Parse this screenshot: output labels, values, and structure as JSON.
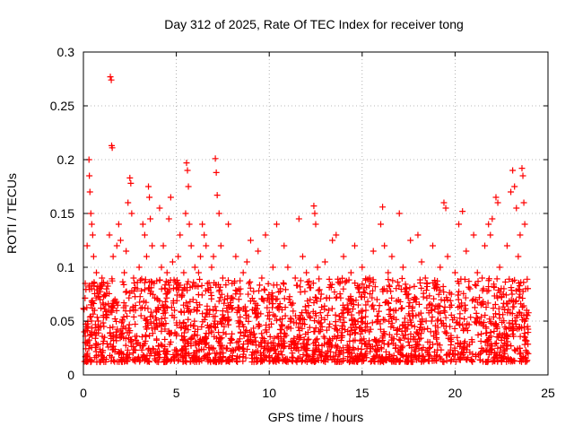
{
  "chart_data": {
    "type": "scatter",
    "title": "Day 312 of 2025, Rate Of TEC Index for receiver tong",
    "xlabel": "GPS time / hours",
    "ylabel": "ROTI / TECUs",
    "xlim": [
      0,
      25
    ],
    "ylim": [
      0,
      0.3
    ],
    "x_ticks": [
      0,
      5,
      10,
      15,
      20,
      25
    ],
    "y_ticks": [
      0,
      0.05,
      0.1,
      0.15,
      0.2,
      0.25,
      0.3
    ],
    "x_tick_labels": [
      "0",
      "5",
      "10",
      "15",
      "20",
      "25"
    ],
    "y_tick_labels": [
      "0",
      "0.05",
      "0.1",
      "0.15",
      "0.2",
      "0.25",
      "0.3"
    ],
    "grid": true,
    "marker": "+",
    "series_color": "#ff0000",
    "series": [
      {
        "name": "ROTI",
        "points": [
          [
            0.05,
            0.04
          ],
          [
            0.1,
            0.085
          ],
          [
            0.15,
            0.03
          ],
          [
            0.2,
            0.12
          ],
          [
            0.25,
            0.045
          ],
          [
            0.3,
            0.2
          ],
          [
            0.32,
            0.185
          ],
          [
            0.35,
            0.17
          ],
          [
            0.4,
            0.15
          ],
          [
            0.45,
            0.14
          ],
          [
            0.5,
            0.13
          ],
          [
            0.55,
            0.11
          ],
          [
            0.6,
            0.06
          ],
          [
            0.7,
            0.095
          ],
          [
            0.8,
            0.05
          ],
          [
            0.9,
            0.07
          ],
          [
            1.0,
            0.09
          ],
          [
            1.1,
            0.045
          ],
          [
            1.2,
            0.065
          ],
          [
            1.3,
            0.085
          ],
          [
            1.4,
            0.13
          ],
          [
            1.45,
            0.277
          ],
          [
            1.5,
            0.274
          ],
          [
            1.52,
            0.213
          ],
          [
            1.55,
            0.211
          ],
          [
            1.6,
            0.11
          ],
          [
            1.7,
            0.07
          ],
          [
            1.8,
            0.12
          ],
          [
            1.9,
            0.14
          ],
          [
            2.0,
            0.125
          ],
          [
            2.1,
            0.05
          ],
          [
            2.2,
            0.095
          ],
          [
            2.3,
            0.115
          ],
          [
            2.4,
            0.16
          ],
          [
            2.5,
            0.183
          ],
          [
            2.55,
            0.178
          ],
          [
            2.6,
            0.15
          ],
          [
            2.7,
            0.09
          ],
          [
            2.8,
            0.06
          ],
          [
            2.9,
            0.08
          ],
          [
            3.0,
            0.1
          ],
          [
            3.1,
            0.055
          ],
          [
            3.2,
            0.14
          ],
          [
            3.3,
            0.13
          ],
          [
            3.4,
            0.11
          ],
          [
            3.5,
            0.175
          ],
          [
            3.55,
            0.165
          ],
          [
            3.6,
            0.145
          ],
          [
            3.7,
            0.12
          ],
          [
            3.8,
            0.085
          ],
          [
            3.9,
            0.06
          ],
          [
            4.0,
            0.07
          ],
          [
            4.1,
            0.155
          ],
          [
            4.2,
            0.1
          ],
          [
            4.3,
            0.12
          ],
          [
            4.4,
            0.08
          ],
          [
            4.5,
            0.095
          ],
          [
            4.6,
            0.145
          ],
          [
            4.7,
            0.165
          ],
          [
            4.8,
            0.105
          ],
          [
            4.9,
            0.06
          ],
          [
            5.0,
            0.08
          ],
          [
            5.1,
            0.11
          ],
          [
            5.2,
            0.13
          ],
          [
            5.3,
            0.075
          ],
          [
            5.4,
            0.095
          ],
          [
            5.5,
            0.15
          ],
          [
            5.55,
            0.197
          ],
          [
            5.6,
            0.19
          ],
          [
            5.65,
            0.175
          ],
          [
            5.7,
            0.14
          ],
          [
            5.8,
            0.12
          ],
          [
            5.9,
            0.07
          ],
          [
            6.0,
            0.1
          ],
          [
            6.1,
            0.06
          ],
          [
            6.2,
            0.095
          ],
          [
            6.3,
            0.11
          ],
          [
            6.4,
            0.14
          ],
          [
            6.5,
            0.13
          ],
          [
            6.6,
            0.12
          ],
          [
            6.7,
            0.08
          ],
          [
            6.8,
            0.06
          ],
          [
            6.9,
            0.1
          ],
          [
            7.0,
            0.11
          ],
          [
            7.1,
            0.201
          ],
          [
            7.15,
            0.188
          ],
          [
            7.2,
            0.167
          ],
          [
            7.3,
            0.15
          ],
          [
            7.4,
            0.12
          ],
          [
            7.5,
            0.09
          ],
          [
            7.6,
            0.07
          ],
          [
            7.8,
            0.14
          ],
          [
            8.0,
            0.085
          ],
          [
            8.2,
            0.11
          ],
          [
            8.4,
            0.06
          ],
          [
            8.6,
            0.095
          ],
          [
            8.8,
            0.105
          ],
          [
            9.0,
            0.125
          ],
          [
            9.2,
            0.06
          ],
          [
            9.4,
            0.115
          ],
          [
            9.6,
            0.09
          ],
          [
            9.8,
            0.13
          ],
          [
            10.0,
            0.07
          ],
          [
            10.2,
            0.1
          ],
          [
            10.4,
            0.14
          ],
          [
            10.6,
            0.08
          ],
          [
            10.8,
            0.12
          ],
          [
            11.0,
            0.1
          ],
          [
            11.2,
            0.065
          ],
          [
            11.4,
            0.09
          ],
          [
            11.6,
            0.145
          ],
          [
            11.8,
            0.11
          ],
          [
            12.0,
            0.095
          ],
          [
            12.2,
            0.07
          ],
          [
            12.4,
            0.157
          ],
          [
            12.45,
            0.15
          ],
          [
            12.5,
            0.14
          ],
          [
            12.6,
            0.1
          ],
          [
            12.8,
            0.075
          ],
          [
            13.0,
            0.105
          ],
          [
            13.2,
            0.06
          ],
          [
            13.4,
            0.125
          ],
          [
            13.6,
            0.13
          ],
          [
            13.8,
            0.085
          ],
          [
            14.0,
            0.11
          ],
          [
            14.2,
            0.065
          ],
          [
            14.4,
            0.095
          ],
          [
            14.6,
            0.12
          ],
          [
            14.8,
            0.08
          ],
          [
            15.0,
            0.1
          ],
          [
            15.2,
            0.06
          ],
          [
            15.4,
            0.09
          ],
          [
            15.6,
            0.115
          ],
          [
            15.8,
            0.07
          ],
          [
            16.0,
            0.14
          ],
          [
            16.1,
            0.156
          ],
          [
            16.2,
            0.12
          ],
          [
            16.4,
            0.095
          ],
          [
            16.6,
            0.11
          ],
          [
            16.8,
            0.06
          ],
          [
            17.0,
            0.15
          ],
          [
            17.2,
            0.1
          ],
          [
            17.4,
            0.08
          ],
          [
            17.6,
            0.125
          ],
          [
            17.8,
            0.07
          ],
          [
            18.0,
            0.13
          ],
          [
            18.2,
            0.105
          ],
          [
            18.4,
            0.09
          ],
          [
            18.6,
            0.065
          ],
          [
            18.8,
            0.12
          ],
          [
            19.0,
            0.08
          ],
          [
            19.2,
            0.1
          ],
          [
            19.4,
            0.16
          ],
          [
            19.5,
            0.155
          ],
          [
            19.6,
            0.11
          ],
          [
            19.8,
            0.075
          ],
          [
            20.0,
            0.095
          ],
          [
            20.2,
            0.14
          ],
          [
            20.4,
            0.152
          ],
          [
            20.6,
            0.115
          ],
          [
            20.8,
            0.08
          ],
          [
            21.0,
            0.13
          ],
          [
            21.2,
            0.095
          ],
          [
            21.4,
            0.065
          ],
          [
            21.6,
            0.12
          ],
          [
            21.8,
            0.14
          ],
          [
            21.9,
            0.13
          ],
          [
            22.0,
            0.145
          ],
          [
            22.2,
            0.165
          ],
          [
            22.3,
            0.16
          ],
          [
            22.4,
            0.1
          ],
          [
            22.6,
            0.075
          ],
          [
            22.8,
            0.12
          ],
          [
            23.0,
            0.17
          ],
          [
            23.1,
            0.19
          ],
          [
            23.2,
            0.175
          ],
          [
            23.3,
            0.155
          ],
          [
            23.4,
            0.11
          ],
          [
            23.5,
            0.13
          ],
          [
            23.6,
            0.192
          ],
          [
            23.65,
            0.185
          ],
          [
            23.7,
            0.16
          ],
          [
            23.75,
            0.14
          ],
          [
            23.8,
            0.08
          ],
          [
            23.85,
            0.06
          ],
          [
            23.9,
            0.045
          ]
        ]
      }
    ],
    "density_band": {
      "description": "dense cloud of markers between roughly 0.01 and 0.09 TECU/min across the whole day",
      "x_range": [
        0,
        23.95
      ],
      "y_low": 0.012,
      "y_high": 0.09,
      "count": 2200
    }
  }
}
